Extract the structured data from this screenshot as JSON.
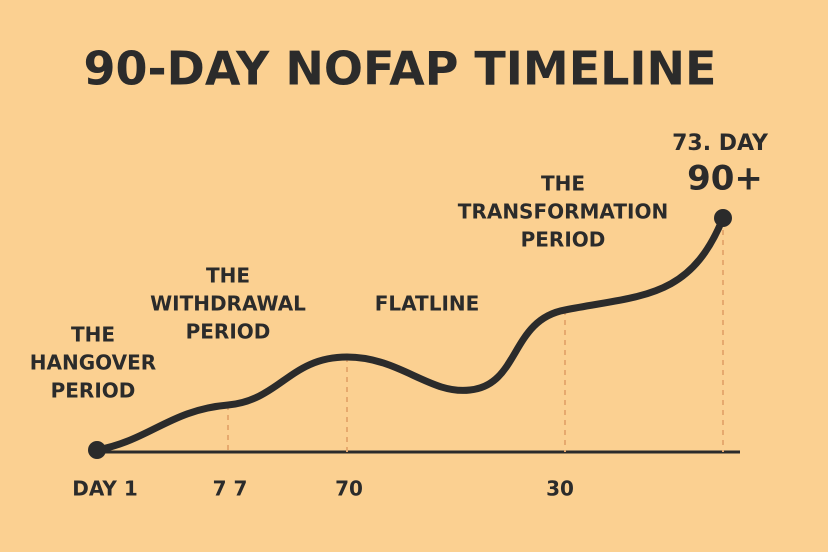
{
  "header": {
    "title": "90-DAY NOFAP TIMELINE"
  },
  "phases": [
    {
      "lines": [
        "THE",
        "HANGOVER",
        "PERIOD"
      ]
    },
    {
      "lines": [
        "THE",
        "WITHDRAWAL",
        "PERIOD"
      ]
    },
    {
      "lines": [
        "FLATLINE"
      ]
    },
    {
      "lines": [
        "THE",
        "TRANSFORMATION",
        "PERIOD"
      ]
    }
  ],
  "peak": {
    "caption": "73. DAY",
    "label": "90+"
  },
  "axis_labels": [
    "DAY 1",
    "7 7",
    "70",
    "30"
  ]
}
